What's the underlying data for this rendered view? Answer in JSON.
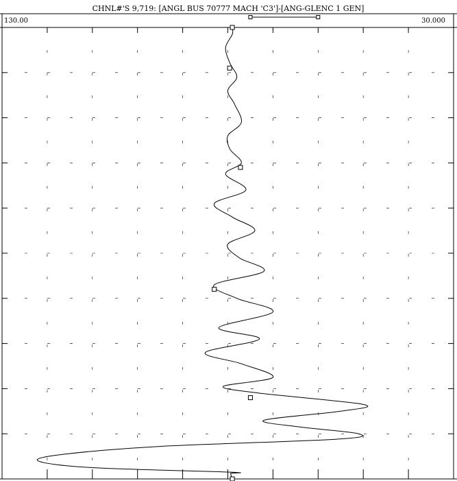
{
  "chart_data": {
    "type": "line",
    "title": "CHNL#'S 9,719: [ANGL BUS 70777 MACH 'C3']-[ANG-GLENC 1 GEN]",
    "orientation": "vertical-time",
    "value_axis": {
      "left_label": "130.00",
      "right_label": "30.000",
      "min": 30,
      "max": 130,
      "reversed": true
    },
    "time_axis": {
      "min": 0,
      "max": 10,
      "direction": "bottom-to-top"
    },
    "grid": true,
    "line_color": "#000000",
    "series": [
      {
        "values": [
          [
            0.0,
            79.0
          ],
          [
            0.12,
            79.4
          ],
          [
            0.15,
            79.4
          ],
          [
            0.25,
            110.0
          ],
          [
            0.4,
            122.0
          ],
          [
            0.55,
            116.0
          ],
          [
            0.72,
            95.0
          ],
          [
            0.88,
            56.0
          ],
          [
            1.0,
            51.0
          ],
          [
            1.15,
            64.0
          ],
          [
            1.3,
            72.0
          ],
          [
            1.5,
            55.0
          ],
          [
            1.65,
            50.0
          ],
          [
            1.9,
            73.0
          ],
          [
            2.05,
            81.0
          ],
          [
            2.25,
            70.0
          ],
          [
            2.55,
            77.0
          ],
          [
            2.8,
            85.0
          ],
          [
            3.1,
            73.0
          ],
          [
            3.35,
            82.0
          ],
          [
            3.7,
            70.0
          ],
          [
            4.0,
            78.0
          ],
          [
            4.3,
            83.0
          ],
          [
            4.6,
            72.0
          ],
          [
            4.9,
            77.5
          ],
          [
            5.2,
            80.0
          ],
          [
            5.5,
            74.0
          ],
          [
            5.8,
            79.0
          ],
          [
            6.1,
            83.0
          ],
          [
            6.4,
            76.0
          ],
          [
            6.75,
            80.5
          ],
          [
            7.0,
            77.0
          ],
          [
            7.3,
            79.5
          ],
          [
            7.6,
            80.0
          ],
          [
            7.9,
            77.0
          ],
          [
            8.3,
            78.5
          ],
          [
            8.6,
            80.0
          ],
          [
            8.9,
            78.0
          ],
          [
            9.2,
            79.5
          ],
          [
            9.55,
            80.5
          ],
          [
            9.85,
            79.0
          ],
          [
            10.0,
            79.0
          ]
        ]
      }
    ],
    "markers": [
      [
        0.0,
        79.0
      ],
      [
        1.8,
        75.0
      ],
      [
        4.2,
        83.0
      ],
      [
        6.9,
        77.2
      ],
      [
        9.1,
        79.6
      ],
      [
        10.0,
        79.0
      ]
    ],
    "scale_bar_markers": [
      75,
      60
    ]
  }
}
